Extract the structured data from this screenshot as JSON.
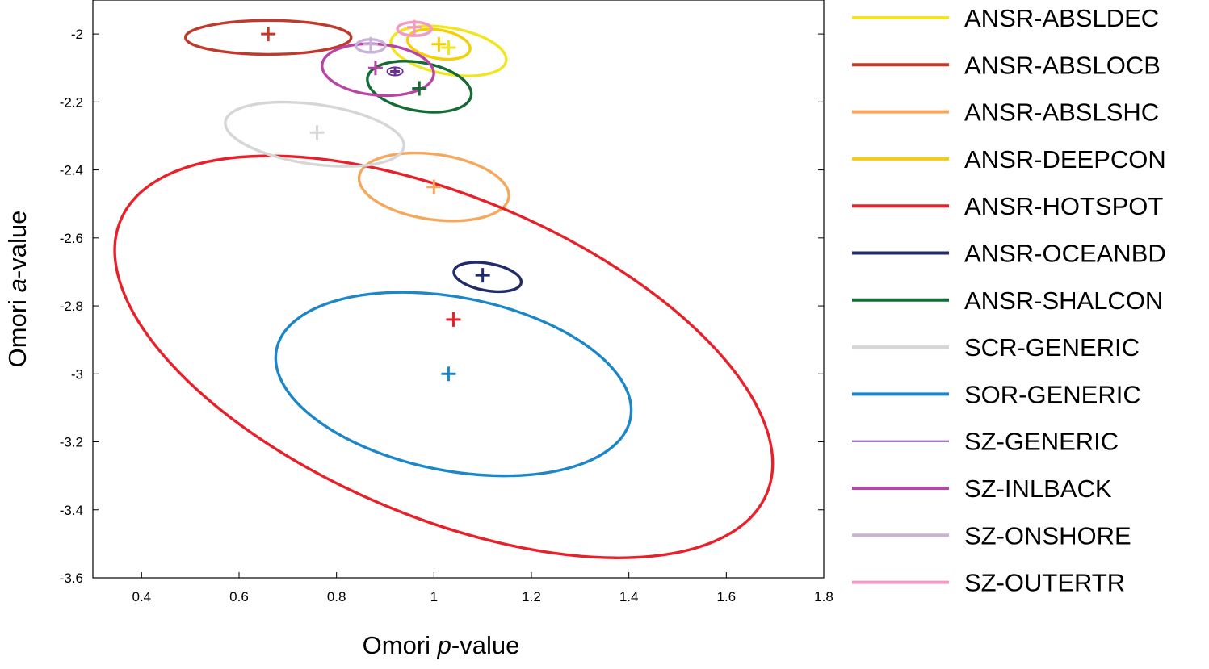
{
  "chart_data": {
    "type": "scatter",
    "title": "",
    "xlabel": {
      "prefix": "Omori ",
      "italic": "p",
      "suffix": "-value"
    },
    "ylabel": {
      "prefix": "Omori ",
      "italic": "a",
      "suffix": "-value"
    },
    "xlim": [
      0.3,
      1.8
    ],
    "ylim": [
      -3.6,
      -1.9
    ],
    "xticks": [
      0.4,
      0.6,
      0.8,
      1.0,
      1.2,
      1.4,
      1.6,
      1.8
    ],
    "xtick_labels": [
      "0.4",
      "0.6",
      "0.8",
      "1",
      "1.2",
      "1.4",
      "1.6",
      "1.8"
    ],
    "yticks": [
      -2.0,
      -2.2,
      -2.4,
      -2.6,
      -2.8,
      -3.0,
      -3.2,
      -3.4,
      -3.6
    ],
    "ytick_labels": [
      "-2",
      "-2.2",
      "-2.4",
      "-2.6",
      "-2.8",
      "-3",
      "-3.2",
      "-3.4",
      "-3.6"
    ],
    "grid": false,
    "legend_position": "right, outside plot",
    "series": [
      {
        "name": "ANSR-ABSLDEC",
        "color": "#f2e51d",
        "p": 1.03,
        "a": -2.04,
        "ellipse": {
          "cx": 1.03,
          "cy": -2.05,
          "rx": 0.12,
          "ry": 0.068,
          "rot": 10
        }
      },
      {
        "name": "ANSR-ABSLOCB",
        "color": "#c0392b",
        "p": 0.66,
        "a": -2.0,
        "ellipse": {
          "cx": 0.66,
          "cy": -2.01,
          "rx": 0.17,
          "ry": 0.05,
          "rot": 0
        }
      },
      {
        "name": "ANSR-ABSLSHC",
        "color": "#f5a85c",
        "p": 1.0,
        "a": -2.45,
        "ellipse": {
          "cx": 1.0,
          "cy": -2.45,
          "rx": 0.155,
          "ry": 0.096,
          "rot": 8
        }
      },
      {
        "name": "ANSR-DEEPCON",
        "color": "#f7ce00",
        "p": 1.01,
        "a": -2.03,
        "ellipse": {
          "cx": 1.01,
          "cy": -2.03,
          "rx": 0.065,
          "ry": 0.042,
          "rot": 10
        }
      },
      {
        "name": "ANSR-HOTSPOT",
        "color": "#e8202a",
        "p": 1.04,
        "a": -2.84,
        "ellipse": {
          "cx": 1.02,
          "cy": -2.95,
          "rx": 0.72,
          "ry": 0.47,
          "rot": 23
        }
      },
      {
        "name": "ANSR-OCEANBD",
        "color": "#1f2b6b",
        "p": 1.1,
        "a": -2.71,
        "ellipse": {
          "cx": 1.11,
          "cy": -2.715,
          "rx": 0.07,
          "ry": 0.04,
          "rot": 10
        }
      },
      {
        "name": "ANSR-SHALCON",
        "color": "#146b34",
        "p": 0.97,
        "a": -2.16,
        "ellipse": {
          "cx": 0.97,
          "cy": -2.155,
          "rx": 0.108,
          "ry": 0.071,
          "rot": 10
        }
      },
      {
        "name": "SCR-GENERIC",
        "color": "#d6d6d6",
        "p": 0.76,
        "a": -2.29,
        "ellipse": {
          "cx": 0.755,
          "cy": -2.295,
          "rx": 0.185,
          "ry": 0.088,
          "rot": 8
        }
      },
      {
        "name": "SOR-GENERIC",
        "color": "#1b86c8",
        "p": 1.03,
        "a": -3.0,
        "ellipse": {
          "cx": 1.04,
          "cy": -3.03,
          "rx": 0.37,
          "ry": 0.255,
          "rot": 11
        }
      },
      {
        "name": "SZ-GENERIC",
        "color": "#6a2d9c",
        "p": 0.92,
        "a": -2.11,
        "ellipse": {
          "cx": 0.92,
          "cy": -2.11,
          "rx": 0.016,
          "ry": 0.012,
          "rot": 0
        }
      },
      {
        "name": "SZ-INLBACK",
        "color": "#b844a6",
        "p": 0.88,
        "a": -2.1,
        "ellipse": {
          "cx": 0.885,
          "cy": -2.105,
          "rx": 0.115,
          "ry": 0.075,
          "rot": 5
        }
      },
      {
        "name": "SZ-ONSHORE",
        "color": "#c9b2d8",
        "p": 0.87,
        "a": -2.03,
        "ellipse": {
          "cx": 0.87,
          "cy": -2.035,
          "rx": 0.03,
          "ry": 0.019,
          "rot": 0
        }
      },
      {
        "name": "SZ-OUTERTR",
        "color": "#f299c4",
        "p": 0.96,
        "a": -1.98,
        "ellipse": {
          "cx": 0.96,
          "cy": -1.985,
          "rx": 0.035,
          "ry": 0.02,
          "rot": 0
        }
      }
    ]
  }
}
